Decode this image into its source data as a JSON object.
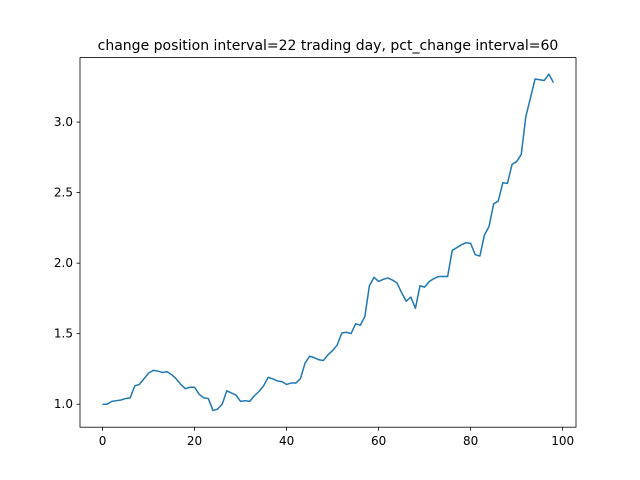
{
  "chart_data": {
    "type": "line",
    "title": "change position interval=22 trading day, pct_change interval=60",
    "x": [
      0,
      1,
      2,
      3,
      4,
      5,
      6,
      7,
      8,
      9,
      10,
      11,
      12,
      13,
      14,
      15,
      16,
      17,
      18,
      19,
      20,
      21,
      22,
      23,
      24,
      25,
      26,
      27,
      28,
      29,
      30,
      31,
      32,
      33,
      34,
      35,
      36,
      37,
      38,
      39,
      40,
      41,
      42,
      43,
      44,
      45,
      46,
      47,
      48,
      49,
      50,
      51,
      52,
      53,
      54,
      55,
      56,
      57,
      58,
      59,
      60,
      61,
      62,
      63,
      64,
      65,
      66,
      67,
      68,
      69,
      70,
      71,
      72,
      73,
      74,
      75,
      76,
      77,
      78,
      79,
      80,
      81,
      82,
      83,
      84,
      85,
      86,
      87,
      88,
      89,
      90,
      91,
      92,
      93,
      94,
      95,
      96,
      97,
      98
    ],
    "series": [
      {
        "name": "pct_change",
        "color": "#1f77b4",
        "values": [
          1.0,
          1.0,
          1.02,
          1.025,
          1.03,
          1.04,
          1.045,
          1.13,
          1.14,
          1.18,
          1.22,
          1.24,
          1.235,
          1.225,
          1.23,
          1.21,
          1.18,
          1.14,
          1.11,
          1.12,
          1.12,
          1.07,
          1.045,
          1.04,
          0.955,
          0.965,
          1.0,
          1.095,
          1.08,
          1.065,
          1.02,
          1.025,
          1.02,
          1.06,
          1.09,
          1.13,
          1.19,
          1.18,
          1.165,
          1.16,
          1.14,
          1.15,
          1.15,
          1.18,
          1.29,
          1.34,
          1.33,
          1.315,
          1.31,
          1.35,
          1.38,
          1.42,
          1.505,
          1.51,
          1.5,
          1.57,
          1.56,
          1.62,
          1.84,
          1.9,
          1.87,
          1.885,
          1.895,
          1.88,
          1.86,
          1.79,
          1.73,
          1.76,
          1.68,
          1.84,
          1.83,
          1.87,
          1.89,
          1.905,
          1.905,
          1.905,
          2.09,
          2.11,
          2.13,
          2.145,
          2.14,
          2.06,
          2.05,
          2.2,
          2.26,
          2.42,
          2.44,
          2.57,
          2.565,
          2.7,
          2.72,
          2.77,
          3.04,
          3.17,
          3.305,
          3.3,
          3.295,
          3.34,
          3.28
        ]
      }
    ],
    "xlim": [
      -4.9,
      102.9
    ],
    "xticks": [
      0,
      20,
      40,
      60,
      80,
      100
    ],
    "ylim": [
      0.837,
      3.457
    ],
    "yticks": [
      {
        "value": 1,
        "label": "1.0"
      },
      1.5,
      {
        "value": 2,
        "label": "2.0"
      },
      2.5,
      {
        "value": 3,
        "label": "3.0"
      }
    ],
    "grid": false
  }
}
